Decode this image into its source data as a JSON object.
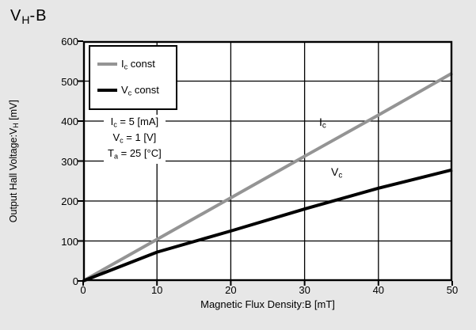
{
  "title": {
    "base": "V",
    "sub": "H",
    "rest": "-B"
  },
  "colors": {
    "background": "#e7e7e7",
    "plot_background": "#ffffff",
    "grid": "#000000",
    "ic_line": "#949494",
    "vc_line": "#000000"
  },
  "axis": {
    "xlabel": {
      "base": "Magnetic Flux Density:B [mT]"
    },
    "ylabel": {
      "base": "Output Hall Voltage:V",
      "sub": "H",
      "rest": " [mV]"
    }
  },
  "legend": {
    "items": [
      {
        "base": "I",
        "sub": "c",
        "rest": " const",
        "color": "#949494"
      },
      {
        "base": "V",
        "sub": "c",
        "rest": " const",
        "color": "#000000"
      }
    ]
  },
  "annotation": {
    "lines": [
      {
        "base": "I",
        "sub": "c",
        "rest": " = 5 [mA]"
      },
      {
        "base": "V",
        "sub": "c",
        "rest": " = 1 [V]"
      },
      {
        "base": "T",
        "sub": "a",
        "rest": " = 25 [°C]"
      }
    ]
  },
  "plot_labels": {
    "ic": {
      "base": "I",
      "sub": "c"
    },
    "vc": {
      "base": "V",
      "sub": "c"
    }
  },
  "chart_data": {
    "type": "line",
    "title": "V_H-B",
    "xlabel": "Magnetic Flux Density:B [mT]",
    "ylabel": "Output Hall Voltage:V_H [mV]",
    "xlim": [
      0,
      50
    ],
    "ylim": [
      0,
      600
    ],
    "xticks": [
      0,
      10,
      20,
      30,
      40,
      50
    ],
    "yticks": [
      0,
      100,
      200,
      300,
      400,
      500,
      600
    ],
    "grid": true,
    "legend_position": "top-left",
    "x": [
      0,
      10,
      20,
      30,
      40,
      50
    ],
    "series": [
      {
        "name": "Ic const",
        "condition": "Ic = 5 [mA]",
        "color": "#949494",
        "values": [
          0,
          104,
          208,
          312,
          415,
          520
        ]
      },
      {
        "name": "Vc const",
        "condition": "Vc = 1 [V]",
        "color": "#000000",
        "values": [
          0,
          72,
          125,
          180,
          232,
          278
        ]
      }
    ]
  }
}
